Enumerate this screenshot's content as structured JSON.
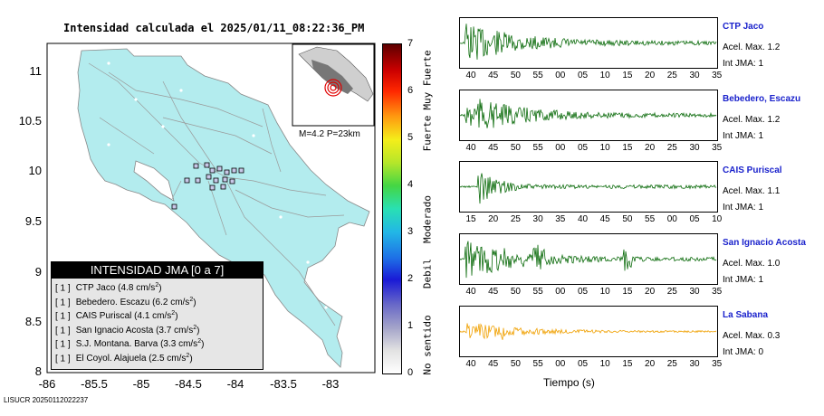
{
  "map": {
    "title": "Intensidad calculada el 2025/01/11_08:22:36_PM",
    "y_ticks": [
      "11",
      "10.5",
      "10",
      "9.5",
      "9",
      "8.5",
      "8"
    ],
    "x_ticks": [
      "-86",
      "-85.5",
      "-85",
      "-84.5",
      "-84",
      "-83.5",
      "-83"
    ],
    "inset_label": "M=4.2 P=23km",
    "land_color": "#b3ecee"
  },
  "legend": {
    "title": "INTENSIDAD JMA [0 a 7]",
    "rows": [
      {
        "level": "[ 1 ]",
        "name": "CTP Jaco (4.8 cm/s",
        "sup": "2",
        "end": ")"
      },
      {
        "level": "[ 1 ]",
        "name": "Bebedero. Escazu (6.2 cm/s",
        "sup": "2",
        "end": ")"
      },
      {
        "level": "[ 1 ]",
        "name": "CAIS Puriscal (4.1 cm/s",
        "sup": "2",
        "end": ")"
      },
      {
        "level": "[ 1 ]",
        "name": "San Ignacio Acosta (3.7 cm/s",
        "sup": "2",
        "end": ")"
      },
      {
        "level": "[ 1 ]",
        "name": "S.J. Montana. Barva (3.3 cm/s",
        "sup": "2",
        "end": ")"
      },
      {
        "level": "[ 1 ]",
        "name": "El Coyol. Alajuela (2.5 cm/s",
        "sup": "2",
        "end": ")"
      }
    ]
  },
  "scale": {
    "ticks": [
      "7",
      "6",
      "5",
      "4",
      "3",
      "2",
      "1",
      "0"
    ],
    "labels": [
      "Muy Fuerte",
      "Fuerte",
      "Moderado",
      "Debil",
      "No sentido"
    ]
  },
  "stations": [
    {
      "name": "CTP Jaco",
      "acel": "Acel. Max. 1.2",
      "int": "Int JMA: 1",
      "color": "#0b6b0b",
      "ticks": [
        "40",
        "45",
        "50",
        "55",
        "00",
        "05",
        "10",
        "15",
        "20",
        "25",
        "30",
        "35"
      ]
    },
    {
      "name": "Bebedero, Escazu",
      "acel": "Acel. Max. 1.2",
      "int": "Int JMA: 1",
      "color": "#0b6b0b",
      "ticks": [
        "40",
        "45",
        "50",
        "55",
        "00",
        "05",
        "10",
        "15",
        "20",
        "25",
        "30",
        "35"
      ]
    },
    {
      "name": "CAIS Puriscal",
      "acel": "Acel. Max. 1.1",
      "int": "Int JMA: 1",
      "color": "#0b6b0b",
      "ticks": [
        "15",
        "20",
        "25",
        "30",
        "35",
        "40",
        "45",
        "50",
        "55",
        "00",
        "05",
        "10"
      ]
    },
    {
      "name": "San Ignacio Acosta",
      "acel": "Acel. Max. 1.0",
      "int": "Int JMA: 1",
      "color": "#0b6b0b",
      "ticks": [
        "40",
        "45",
        "50",
        "55",
        "00",
        "05",
        "10",
        "15",
        "20",
        "25",
        "30",
        "35"
      ]
    },
    {
      "name": "La Sabana",
      "acel": "Acel. Max. 0.3",
      "int": "Int JMA: 0",
      "color": "#f0a000",
      "ticks": [
        "40",
        "45",
        "50",
        "55",
        "00",
        "05",
        "10",
        "15",
        "20",
        "25",
        "30",
        "35"
      ]
    }
  ],
  "x_axis_label": "Tiempo (s)",
  "footer": "LISUCR 20250112022237"
}
